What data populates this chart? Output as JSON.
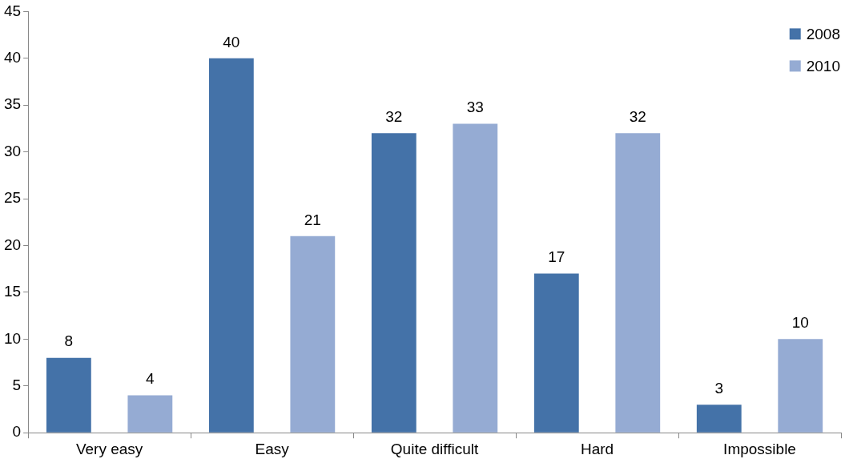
{
  "chart_data": {
    "type": "bar",
    "categories": [
      "Very easy",
      "Easy",
      "Quite difficult",
      "Hard",
      "Impossible"
    ],
    "series": [
      {
        "name": "2008",
        "color": "#4472a8",
        "values": [
          8,
          40,
          32,
          17,
          3
        ]
      },
      {
        "name": "2010",
        "color": "#95abd3",
        "values": [
          4,
          21,
          33,
          32,
          10
        ]
      }
    ],
    "ylim": [
      0,
      45
    ],
    "yticks": [
      0,
      5,
      10,
      15,
      20,
      25,
      30,
      35,
      40,
      45
    ],
    "grid": false,
    "legend": "top right",
    "data_labels": true
  }
}
